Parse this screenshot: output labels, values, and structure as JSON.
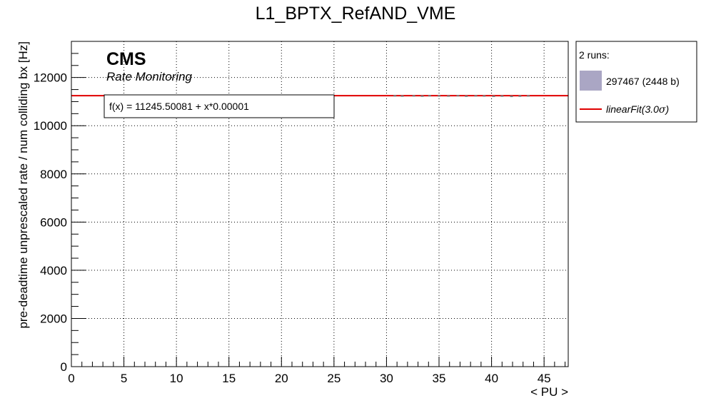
{
  "chart_data": {
    "type": "scatter",
    "title": "L1_BPTX_RefAND_VME",
    "xlabel": "< PU >",
    "ylabel": "pre-deadtime unprescaled rate / num colliding bx [Hz]",
    "xlim": [
      0,
      47.3
    ],
    "ylim": [
      0,
      13500
    ],
    "x_ticks": [
      0,
      5,
      10,
      15,
      20,
      25,
      30,
      35,
      40,
      45
    ],
    "y_ticks": [
      0,
      2000,
      4000,
      6000,
      8000,
      10000,
      12000
    ],
    "x_tick_labels": [
      "0",
      "5",
      "10",
      "15",
      "20",
      "25",
      "30",
      "35",
      "40",
      "45"
    ],
    "y_tick_labels": [
      "0",
      "2000",
      "4000",
      "6000",
      "8000",
      "10000",
      "12000"
    ],
    "grid": true,
    "cms_label": "CMS",
    "cms_sublabel": "Rate Monitoring",
    "fit_formula": "f(x) = 11245.50081 + x*0.00001",
    "fit": {
      "intercept": 11245.50081,
      "slope": 1e-05,
      "color": "#e00000"
    },
    "series": [
      {
        "name": "297467 (2448 b)",
        "color": "#aaa6c4",
        "x": [
          30.8,
          31.5,
          32.6,
          33.4,
          34.1,
          35.0,
          35.9,
          36.8,
          37.6,
          38.5,
          39.3,
          40.2,
          41.0,
          41.9,
          42.7,
          43.5
        ],
        "y": [
          11240,
          11230,
          11238,
          11228,
          11242,
          11236,
          11232,
          11244,
          11226,
          11240,
          11234,
          11222,
          11230,
          11218,
          11228,
          11236
        ]
      }
    ],
    "legend": {
      "position": "right",
      "header": "2 runs:",
      "entries": [
        "297467 (2448 b)",
        "linearFit(3.0σ)"
      ],
      "fit_label_prefix": "linearFit(3.0",
      "fit_label_symbol": "σ",
      "fit_label_suffix": ")"
    }
  }
}
